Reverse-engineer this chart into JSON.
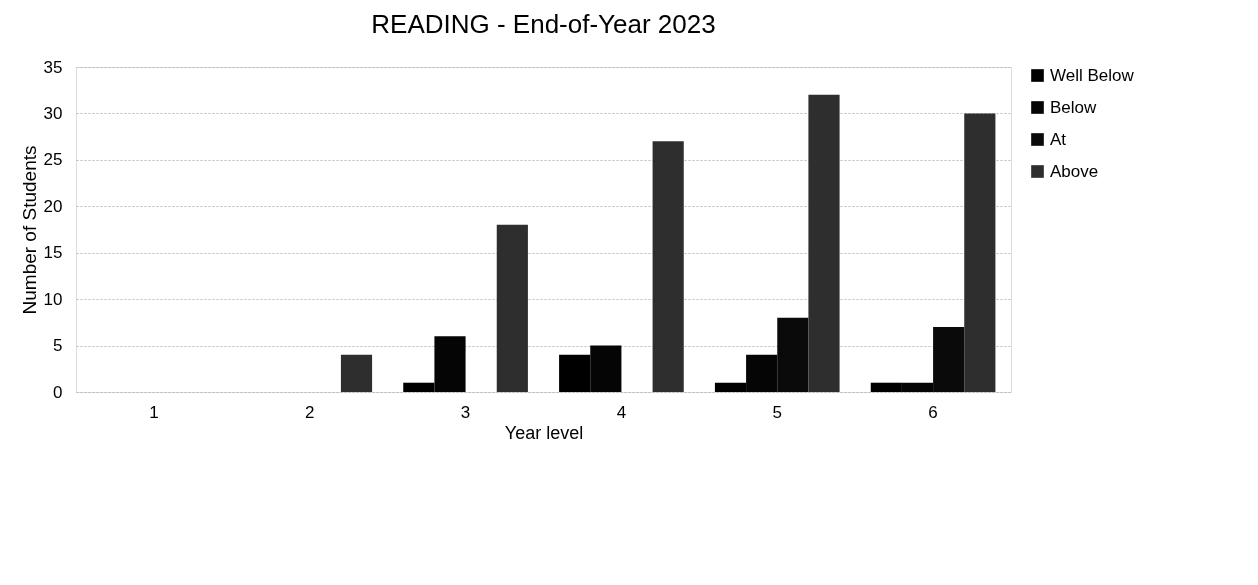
{
  "chart_data": {
    "type": "bar",
    "title": "READING - End-of-Year 2023",
    "xlabel": "Year level",
    "ylabel": "Number of Students",
    "categories": [
      "1",
      "2",
      "3",
      "4",
      "5",
      "6"
    ],
    "series": [
      {
        "name": "Well Below",
        "color": "#000000",
        "values": [
          0,
          0,
          1,
          4,
          1,
          1
        ]
      },
      {
        "name": "Below",
        "color": "#050505",
        "values": [
          0,
          0,
          6,
          5,
          4,
          1
        ]
      },
      {
        "name": "At",
        "color": "#0a0a0a",
        "values": [
          0,
          0,
          0,
          0,
          8,
          7
        ]
      },
      {
        "name": "Above",
        "color": "#2e2e2e",
        "values": [
          0,
          4,
          18,
          27,
          32,
          30
        ]
      }
    ],
    "ylim": [
      0,
      35
    ],
    "yticks": [
      0,
      5,
      10,
      15,
      20,
      25,
      30,
      35
    ],
    "grid": "y",
    "legend": "right"
  }
}
